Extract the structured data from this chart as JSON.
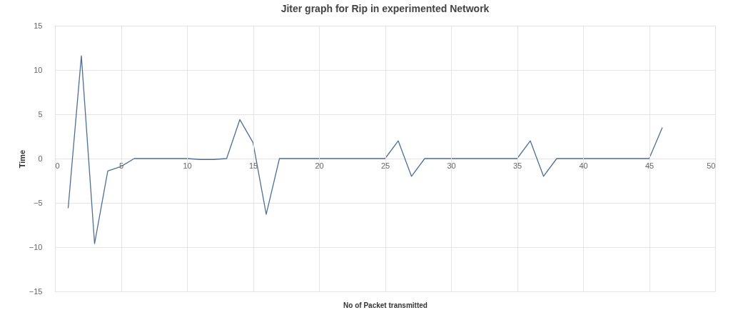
{
  "chart_data": {
    "type": "line",
    "title": "Jiter graph for Rip in experimented Network",
    "xlabel": "No of Packet transmitted",
    "ylabel": "Time",
    "x": [
      1,
      2,
      3,
      4,
      5,
      6,
      7,
      8,
      9,
      10,
      11,
      12,
      13,
      14,
      15,
      16,
      17,
      18,
      19,
      20,
      21,
      22,
      23,
      24,
      25,
      26,
      27,
      28,
      29,
      30,
      31,
      32,
      33,
      34,
      35,
      36,
      37,
      38,
      39,
      40,
      41,
      42,
      43,
      44,
      45,
      46
    ],
    "series": [
      {
        "color": "#4f6f94",
        "values": [
          -5.6,
          11.6,
          -9.6,
          -1.4,
          -0.9,
          0,
          0,
          0,
          0,
          0,
          -0.1,
          -0.1,
          0,
          4.4,
          1.8,
          -6.3,
          0,
          0,
          0,
          0,
          0,
          0,
          0,
          0,
          0,
          2,
          -2,
          0,
          0,
          0,
          0,
          0,
          0,
          0,
          0,
          2,
          -2,
          0,
          0,
          0,
          0,
          0,
          0,
          0,
          0,
          3.5
        ]
      }
    ],
    "xlim": [
      0,
      50
    ],
    "xticks": [
      0,
      5,
      10,
      15,
      20,
      25,
      30,
      35,
      40,
      45,
      50
    ],
    "ylim": [
      -15,
      15
    ],
    "yticks": [
      -15,
      -10,
      -5,
      0,
      5,
      10,
      15
    ],
    "grid": true,
    "marker": "none",
    "line_style": "solid",
    "legend": false
  }
}
